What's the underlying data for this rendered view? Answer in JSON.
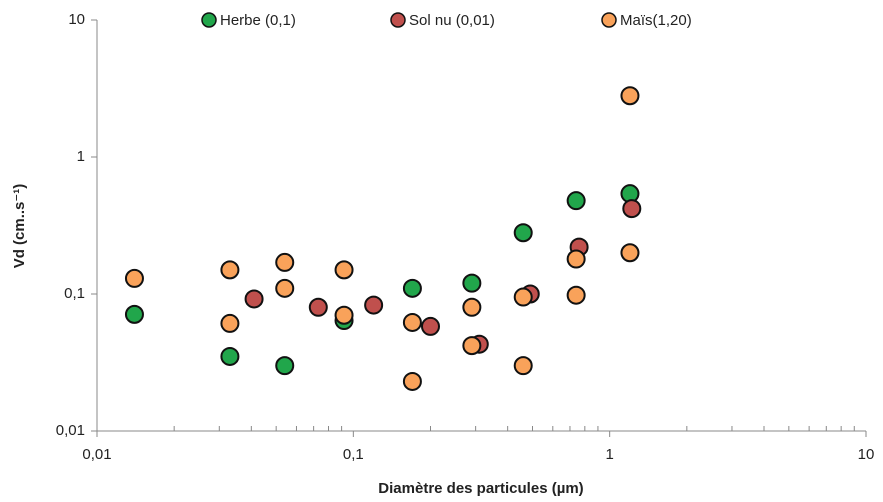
{
  "chart_data": {
    "type": "scatter",
    "xlabel": "Diamètre des particules (µm)",
    "ylabel": "Vd (cm..s⁻¹)",
    "xscale": "log",
    "yscale": "log",
    "minor_ticks": true,
    "xlim": [
      0.01,
      10
    ],
    "ylim": [
      0.01,
      10
    ],
    "xticks": [
      {
        "value": 0.01,
        "label": "0,01"
      },
      {
        "value": 0.1,
        "label": "0,1"
      },
      1,
      10
    ],
    "yticks": [
      {
        "value": 0.01,
        "label": "0,01"
      },
      {
        "value": 0.1,
        "label": "0,1"
      },
      1,
      10
    ],
    "legend": "top",
    "series": [
      {
        "name": "Herbe (0,1)",
        "color": "#21a64b",
        "x": [
          0.014,
          0.033,
          0.054,
          0.092,
          0.17,
          0.29,
          0.46,
          0.74,
          1.2
        ],
        "values": [
          0.071,
          0.035,
          0.03,
          0.064,
          0.11,
          0.12,
          0.28,
          0.48,
          0.54
        ]
      },
      {
        "name": "Sol nu (0,01)",
        "color": "#c0504d",
        "x": [
          0.041,
          0.073,
          0.12,
          0.2,
          0.31,
          0.49,
          0.76,
          1.22
        ],
        "values": [
          0.092,
          0.08,
          0.083,
          0.058,
          0.043,
          0.1,
          0.22,
          0.42
        ]
      },
      {
        "name": "Maïs(1,20)",
        "color": "#f9a25a",
        "x": [
          0.014,
          0.033,
          0.033,
          0.054,
          0.054,
          0.092,
          0.092,
          0.17,
          0.17,
          0.29,
          0.29,
          0.46,
          0.46,
          0.74,
          0.74,
          1.2,
          1.2
        ],
        "values": [
          0.13,
          0.15,
          0.061,
          0.17,
          0.11,
          0.15,
          0.07,
          0.062,
          0.023,
          0.08,
          0.042,
          0.095,
          0.03,
          0.18,
          0.098,
          2.8,
          0.2
        ]
      }
    ]
  }
}
